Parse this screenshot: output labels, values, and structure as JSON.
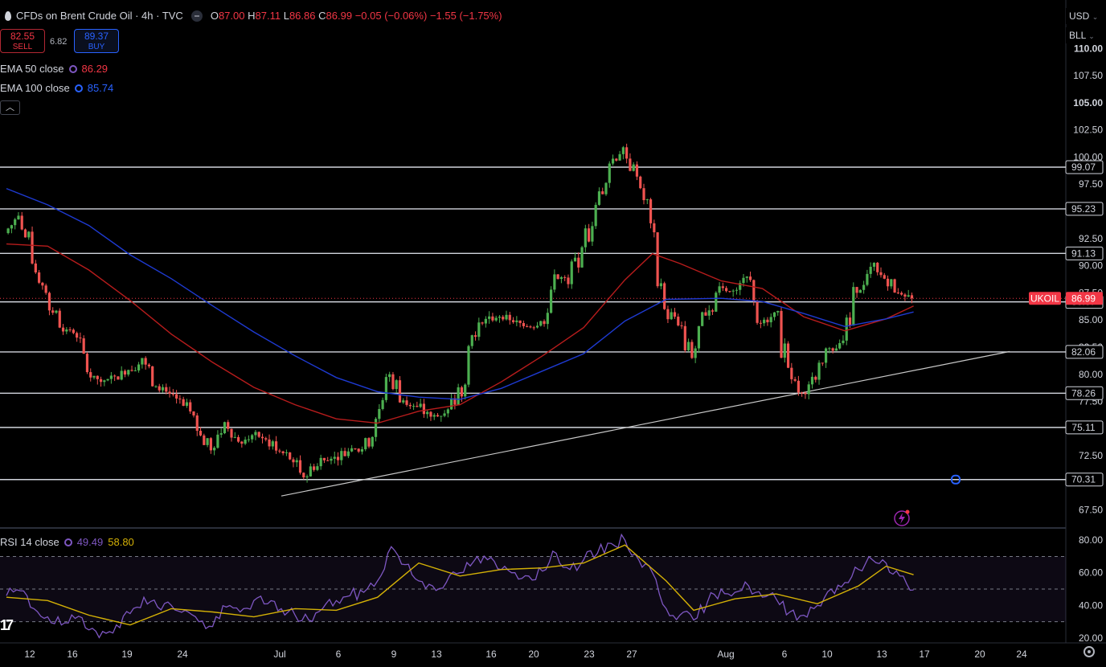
{
  "header": {
    "symbol_title": "CFDs on Brent Crude Oil · 4h · TVC",
    "ohlc": [
      {
        "label": "O",
        "value": "87.00"
      },
      {
        "label": "H",
        "value": "87.11"
      },
      {
        "label": "L",
        "value": "86.86"
      },
      {
        "label": "C",
        "value": "86.99"
      }
    ],
    "change": "−0.05 (−0.06%)",
    "change2": "−1.55 (−1.75%)",
    "sell_price": "82.55",
    "sell_label": "SELL",
    "spread": "6.82",
    "buy_price": "89.37",
    "buy_label": "BUY",
    "ema50_label": "EMA 50 close",
    "ema50_value": "86.29",
    "ema100_label": "EMA 100 close",
    "ema100_value": "85.74",
    "collapse_icon": "chevron-up-icon",
    "currency": "USD",
    "unit": "BLL"
  },
  "rsi_legend": {
    "label": "RSI 14 close",
    "rsi_value": "49.49",
    "ma_value": "58.80"
  },
  "colors": {
    "up": "#26a69a",
    "up_green": "#4caf50",
    "down": "#ef5350",
    "ema50": "#b71c1c",
    "ema100": "#1e3ad1",
    "hline": "#d1d4dc",
    "rsi": "#7e57c2",
    "rsi_ma": "#d4b106",
    "price_badge": "#f23645"
  },
  "chart_data": [
    {
      "type": "candlestick",
      "title": "CFDs on Brent Crude Oil · 4h · TVC",
      "xlabels": [
        "12",
        "16",
        "19",
        "24",
        "Jul",
        "6",
        "9",
        "13",
        "16",
        "20",
        "23",
        "27",
        "Aug",
        "6",
        "10",
        "13",
        "17",
        "20",
        "24"
      ],
      "y_ticks": [
        "110.00",
        "107.50",
        "105.00",
        "102.50",
        "100.00",
        "97.50",
        "92.50",
        "90.00",
        "87.50",
        "85.00",
        "82.50",
        "80.00",
        "77.50",
        "72.50",
        "67.50"
      ],
      "ylim": [
        66,
        111.5
      ],
      "horizontal_levels": [
        "99.07",
        "95.23",
        "91.13",
        "86.67",
        "82.06",
        "78.26",
        "75.11",
        "70.31"
      ],
      "current_price": {
        "label": "UKOIL",
        "value": "86.99"
      },
      "trendline": {
        "from": [
          "Jun 30",
          68.8
        ],
        "to": [
          "Aug 22",
          82.1
        ]
      },
      "series": [
        {
          "name": "Price",
          "points": [
            [
              "Jun 10",
              93.0
            ],
            [
              "Jun 11",
              94.6
            ],
            [
              "Jun 12",
              90.2
            ],
            [
              "Jun 13",
              87.5
            ],
            [
              "Jun 14",
              84.3
            ],
            [
              "Jun 15",
              83.8
            ],
            [
              "Jun 16",
              80.2
            ],
            [
              "Jun 17",
              79.3
            ],
            [
              "Jun 18",
              79.8
            ],
            [
              "Jun 19",
              80.4
            ],
            [
              "Jun 20",
              81.5
            ],
            [
              "Jun 21",
              78.9
            ],
            [
              "Jun 22",
              78.2
            ],
            [
              "Jun 23",
              77.1
            ],
            [
              "Jun 24",
              74.8
            ],
            [
              "Jun 25",
              73.0
            ],
            [
              "Jun 26",
              75.6
            ],
            [
              "Jun 27",
              73.8
            ],
            [
              "Jun 28",
              74.4
            ],
            [
              "Jun 29",
              74.0
            ],
            [
              "Jun 30",
              72.9
            ],
            [
              "Jul 1",
              71.9
            ],
            [
              "Jul 2",
              70.6
            ],
            [
              "Jul 3",
              72.3
            ],
            [
              "Jul 4",
              72.4
            ],
            [
              "Jul 5",
              72.9
            ],
            [
              "Jul 6",
              73.1
            ],
            [
              "Jul 7",
              75.9
            ],
            [
              "Jul 8",
              80.0
            ],
            [
              "Jul 9",
              77.6
            ],
            [
              "Jul 10",
              77.0
            ],
            [
              "Jul 11",
              76.1
            ],
            [
              "Jul 12",
              76.4
            ],
            [
              "Jul 13",
              78.8
            ],
            [
              "Jul 14",
              83.6
            ],
            [
              "Jul 15",
              85.1
            ],
            [
              "Jul 16",
              85.3
            ],
            [
              "Jul 17",
              84.8
            ],
            [
              "Jul 18",
              84.4
            ],
            [
              "Jul 19",
              84.9
            ],
            [
              "Jul 20",
              89.2
            ],
            [
              "Jul 21",
              88.3
            ],
            [
              "Jul 22",
              91.7
            ],
            [
              "Jul 23",
              95.6
            ],
            [
              "Jul 24",
              99.4
            ],
            [
              "Jul 25",
              100.9
            ],
            [
              "Jul 26",
              98.2
            ],
            [
              "Jul 27",
              93.9
            ],
            [
              "Jul 28",
              86.0
            ],
            [
              "Jul 29",
              84.5
            ],
            [
              "Jul 30",
              81.5
            ],
            [
              "Jul 31",
              85.4
            ],
            [
              "Aug 1",
              88.1
            ],
            [
              "Aug 2",
              87.7
            ],
            [
              "Aug 3",
              89.0
            ],
            [
              "Aug 4",
              84.7
            ],
            [
              "Aug 5",
              85.7
            ],
            [
              "Aug 6",
              80.6
            ],
            [
              "Aug 7",
              78.3
            ],
            [
              "Aug 8",
              79.5
            ],
            [
              "Aug 9",
              82.4
            ],
            [
              "Aug 10",
              83.1
            ],
            [
              "Aug 11",
              87.5
            ],
            [
              "Aug 12",
              89.9
            ],
            [
              "Aug 13",
              88.8
            ],
            [
              "Aug 14",
              87.5
            ],
            [
              "Aug 15",
              86.99
            ]
          ]
        },
        {
          "name": "EMA 50 close",
          "points": [
            [
              "Jun 10",
              92.0
            ],
            [
              "Jun 13",
              91.8
            ],
            [
              "Jun 16",
              89.6
            ],
            [
              "Jun 19",
              86.8
            ],
            [
              "Jun 22",
              83.7
            ],
            [
              "Jun 25",
              81.1
            ],
            [
              "Jun 28",
              78.8
            ],
            [
              "Jul 1",
              77.2
            ],
            [
              "Jul 4",
              75.9
            ],
            [
              "Jul 7",
              75.5
            ],
            [
              "Jul 10",
              76.6
            ],
            [
              "Jul 13",
              77.2
            ],
            [
              "Jul 16",
              79.3
            ],
            [
              "Jul 19",
              81.7
            ],
            [
              "Jul 22",
              84.3
            ],
            [
              "Jul 25",
              88.7
            ],
            [
              "Jul 27",
              91.1
            ],
            [
              "Jul 29",
              90.2
            ],
            [
              "Aug 1",
              88.6
            ],
            [
              "Aug 4",
              87.9
            ],
            [
              "Aug 7",
              85.3
            ],
            [
              "Aug 10",
              84.0
            ],
            [
              "Aug 13",
              85.1
            ],
            [
              "Aug 15",
              86.29
            ]
          ]
        },
        {
          "name": "EMA 100 close",
          "points": [
            [
              "Jun 10",
              97.1
            ],
            [
              "Jun 13",
              95.6
            ],
            [
              "Jun 16",
              93.7
            ],
            [
              "Jun 19",
              91.0
            ],
            [
              "Jun 22",
              88.8
            ],
            [
              "Jun 25",
              86.3
            ],
            [
              "Jun 28",
              83.9
            ],
            [
              "Jul 1",
              81.7
            ],
            [
              "Jul 4",
              79.7
            ],
            [
              "Jul 7",
              78.4
            ],
            [
              "Jul 10",
              77.9
            ],
            [
              "Jul 13",
              77.7
            ],
            [
              "Jul 16",
              78.7
            ],
            [
              "Jul 19",
              80.3
            ],
            [
              "Jul 22",
              81.9
            ],
            [
              "Jul 25",
              84.9
            ],
            [
              "Jul 28",
              86.9
            ],
            [
              "Aug 1",
              87.0
            ],
            [
              "Aug 4",
              86.7
            ],
            [
              "Aug 7",
              85.6
            ],
            [
              "Aug 10",
              84.4
            ],
            [
              "Aug 13",
              85.1
            ],
            [
              "Aug 15",
              85.74
            ]
          ]
        }
      ]
    },
    {
      "type": "line",
      "title": "RSI 14 close",
      "y_ticks": [
        "80.00",
        "60.00",
        "40.00",
        "20.00"
      ],
      "ylim": [
        18,
        85
      ],
      "band": [
        30,
        70
      ],
      "midline": 50,
      "series": [
        {
          "name": "RSI",
          "points": [
            [
              "Jun 10",
              46
            ],
            [
              "Jun 11",
              49
            ],
            [
              "Jun 12",
              38
            ],
            [
              "Jun 13",
              33
            ],
            [
              "Jun 14",
              28
            ],
            [
              "Jun 15",
              32
            ],
            [
              "Jun 16",
              25
            ],
            [
              "Jun 17",
              24
            ],
            [
              "Jun 18",
              28
            ],
            [
              "Jun 19",
              35
            ],
            [
              "Jun 20",
              45
            ],
            [
              "Jun 21",
              39
            ],
            [
              "Jun 22",
              40
            ],
            [
              "Jun 23",
              37
            ],
            [
              "Jun 24",
              30
            ],
            [
              "Jun 25",
              27
            ],
            [
              "Jun 26",
              39
            ],
            [
              "Jun 27",
              36
            ],
            [
              "Jun 28",
              43
            ],
            [
              "Jun 29",
              41
            ],
            [
              "Jun 30",
              38
            ],
            [
              "Jul 1",
              34
            ],
            [
              "Jul 2",
              31
            ],
            [
              "Jul 3",
              38
            ],
            [
              "Jul 4",
              43
            ],
            [
              "Jul 5",
              46
            ],
            [
              "Jul 6",
              48
            ],
            [
              "Jul 7",
              55
            ],
            [
              "Jul 8",
              76
            ],
            [
              "Jul 9",
              65
            ],
            [
              "Jul 10",
              55
            ],
            [
              "Jul 11",
              52
            ],
            [
              "Jul 12",
              54
            ],
            [
              "Jul 13",
              60
            ],
            [
              "Jul 14",
              67
            ],
            [
              "Jul 15",
              68
            ],
            [
              "Jul 16",
              62
            ],
            [
              "Jul 17",
              60
            ],
            [
              "Jul 18",
              58
            ],
            [
              "Jul 19",
              61
            ],
            [
              "Jul 20",
              72
            ],
            [
              "Jul 21",
              62
            ],
            [
              "Jul 22",
              68
            ],
            [
              "Jul 23",
              72
            ],
            [
              "Jul 24",
              78
            ],
            [
              "Jul 25",
              80
            ],
            [
              "Jul 26",
              68
            ],
            [
              "Jul 27",
              60
            ],
            [
              "Jul 28",
              38
            ],
            [
              "Jul 29",
              34
            ],
            [
              "Jul 30",
              31
            ],
            [
              "Jul 31",
              42
            ],
            [
              "Aug 1",
              50
            ],
            [
              "Aug 2",
              48
            ],
            [
              "Aug 3",
              52
            ],
            [
              "Aug 4",
              45
            ],
            [
              "Aug 5",
              44
            ],
            [
              "Aug 6",
              36
            ],
            [
              "Aug 7",
              34
            ],
            [
              "Aug 8",
              40
            ],
            [
              "Aug 9",
              50
            ],
            [
              "Aug 10",
              54
            ],
            [
              "Aug 11",
              62
            ],
            [
              "Aug 12",
              68
            ],
            [
              "Aug 13",
              66
            ],
            [
              "Aug 14",
              58
            ],
            [
              "Aug 15",
              49.49
            ]
          ]
        },
        {
          "name": "RSI-based MA",
          "points": [
            [
              "Jun 10",
              45
            ],
            [
              "Jun 13",
              43
            ],
            [
              "Jun 16",
              34
            ],
            [
              "Jun 19",
              28
            ],
            [
              "Jun 22",
              38
            ],
            [
              "Jun 25",
              36
            ],
            [
              "Jun 28",
              33
            ],
            [
              "Jul 1",
              38
            ],
            [
              "Jul 4",
              37
            ],
            [
              "Jul 7",
              45
            ],
            [
              "Jul 10",
              66
            ],
            [
              "Jul 13",
              58
            ],
            [
              "Jul 16",
              62
            ],
            [
              "Jul 19",
              63
            ],
            [
              "Jul 22",
              66
            ],
            [
              "Jul 25",
              77
            ],
            [
              "Jul 28",
              55
            ],
            [
              "Jul 30",
              37
            ],
            [
              "Aug 2",
              44
            ],
            [
              "Aug 5",
              47
            ],
            [
              "Aug 8",
              41
            ],
            [
              "Aug 11",
              52
            ],
            [
              "Aug 13",
              64
            ],
            [
              "Aug 15",
              58.8
            ]
          ]
        }
      ]
    }
  ]
}
